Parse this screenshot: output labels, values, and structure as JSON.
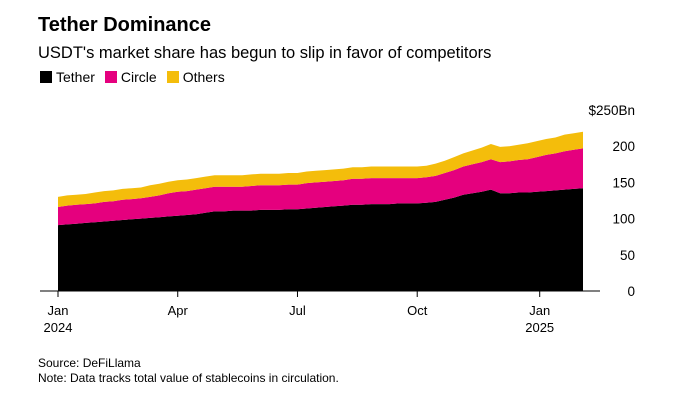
{
  "chart_data": {
    "type": "area",
    "stacked": true,
    "title": "Tether Dominance",
    "subtitle": "USDT's market share has begun to slip in favor of competitors",
    "x": [
      0,
      1,
      2,
      3,
      4,
      5,
      6,
      7,
      8,
      9,
      10,
      11,
      12,
      13,
      14,
      15,
      16,
      17,
      18,
      19,
      20,
      21,
      22,
      23,
      24,
      25,
      26,
      27,
      28,
      29,
      30,
      31,
      32,
      33,
      34,
      35,
      36,
      37,
      38,
      39,
      40,
      41,
      42,
      43,
      44,
      45,
      46,
      47,
      48,
      49,
      50,
      51,
      52,
      53,
      54,
      55,
      56,
      57
    ],
    "x_unit": "weeks since Jan 1, 2024",
    "series": [
      {
        "name": "Tether",
        "color": "#000000",
        "values": [
          91,
          92,
          93,
          94,
          95,
          96,
          97,
          98,
          99,
          100,
          101,
          102,
          103,
          104,
          105,
          106,
          108,
          110,
          110,
          111,
          111,
          111,
          112,
          112,
          112,
          113,
          113,
          114,
          115,
          116,
          117,
          118,
          119,
          119,
          120,
          120,
          120,
          121,
          121,
          121,
          122,
          123,
          126,
          129,
          133,
          135,
          137,
          140,
          135,
          135,
          136,
          136,
          137,
          138,
          139,
          140,
          141,
          142
        ]
      },
      {
        "name": "Circle",
        "color": "#e5007e",
        "values": [
          25,
          26,
          26,
          26,
          26,
          27,
          27,
          28,
          28,
          28,
          29,
          30,
          32,
          33,
          33,
          34,
          34,
          34,
          34,
          33,
          33,
          34,
          34,
          34,
          34,
          34,
          34,
          35,
          35,
          35,
          35,
          35,
          36,
          36,
          36,
          36,
          36,
          35,
          35,
          35,
          35,
          36,
          37,
          38,
          39,
          40,
          41,
          42,
          43,
          44,
          45,
          46,
          48,
          50,
          51,
          53,
          54,
          55
        ]
      },
      {
        "name": "Others",
        "color": "#f4bd0b",
        "values": [
          14,
          14,
          14,
          14,
          15,
          15,
          15,
          15,
          15,
          15,
          16,
          16,
          16,
          16,
          16,
          16,
          16,
          16,
          16,
          16,
          16,
          16,
          16,
          16,
          16,
          16,
          16,
          16,
          16,
          16,
          16,
          16,
          16,
          16,
          16,
          16,
          16,
          16,
          16,
          16,
          16,
          17,
          17,
          18,
          18,
          19,
          20,
          21,
          21,
          21,
          21,
          22,
          22,
          22,
          22,
          23,
          23,
          23
        ]
      }
    ],
    "x_ticks": [
      {
        "x": 0,
        "label": "Jan",
        "sublabel": "2024"
      },
      {
        "x": 13,
        "label": "Apr",
        "sublabel": ""
      },
      {
        "x": 26,
        "label": "Jul",
        "sublabel": ""
      },
      {
        "x": 39,
        "label": "Oct",
        "sublabel": ""
      },
      {
        "x": 52.3,
        "label": "Jan",
        "sublabel": "2025"
      }
    ],
    "x_range": [
      0,
      57
    ],
    "y_ticks": [
      {
        "value": 250,
        "label": "$250Bn"
      },
      {
        "value": 200,
        "label": "200"
      },
      {
        "value": 150,
        "label": "150"
      },
      {
        "value": 100,
        "label": "100"
      },
      {
        "value": 50,
        "label": "50"
      },
      {
        "value": 0,
        "label": "0"
      }
    ],
    "ylim": [
      0,
      250
    ],
    "grid": false,
    "legend": "top-left",
    "xlabel": "",
    "ylabel": ""
  },
  "footer": {
    "source": "Source: DeFiLlama",
    "note": "Note: Data tracks total value of stablecoins in circulation."
  }
}
